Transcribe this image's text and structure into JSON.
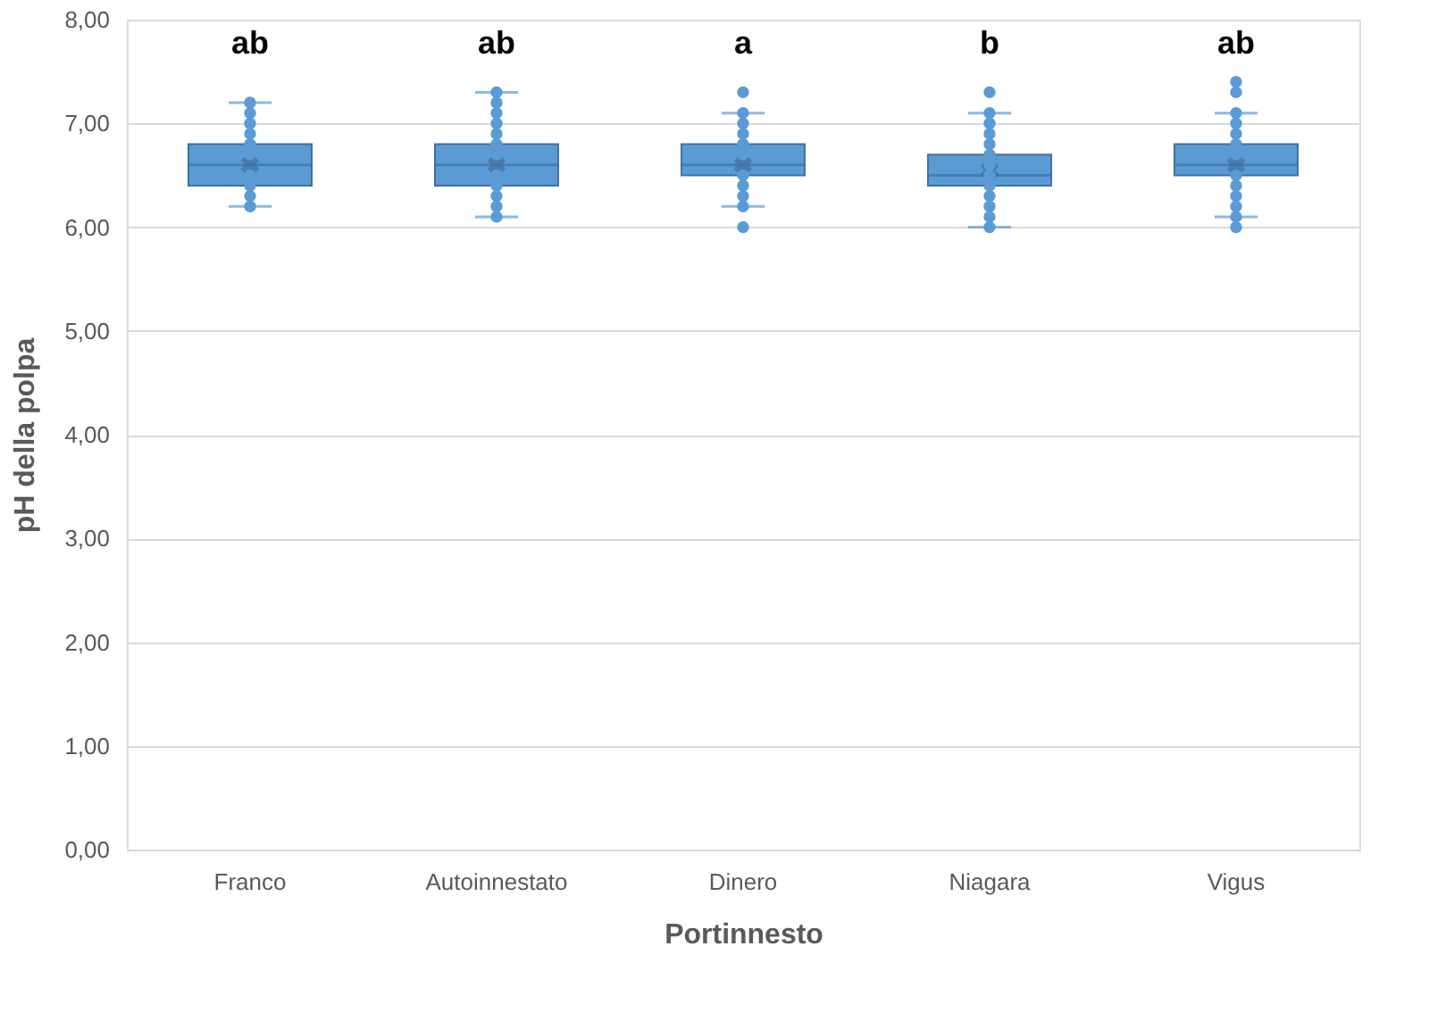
{
  "chart_data": {
    "type": "box",
    "xlabel": "Portinnesto",
    "ylabel": "pH della polpa",
    "categories": [
      "Franco",
      "Autoinnestato",
      "Dinero",
      "Niagara",
      "Vigus"
    ],
    "color": "#5b9bd5",
    "boxes": [
      {
        "low": 6.2,
        "q1": 6.4,
        "median": 6.6,
        "q3": 6.8,
        "high": 7.2,
        "mean": 6.6
      },
      {
        "low": 6.1,
        "q1": 6.4,
        "median": 6.6,
        "q3": 6.8,
        "high": 7.3,
        "mean": 6.6
      },
      {
        "low": 6.2,
        "q1": 6.5,
        "median": 6.6,
        "q3": 6.8,
        "high": 7.1,
        "mean": 6.6,
        "outliers": [
          7.3,
          6.0
        ]
      },
      {
        "low": 6.0,
        "q1": 6.4,
        "median": 6.5,
        "q3": 6.7,
        "high": 7.1,
        "mean": 6.55,
        "outliers": [
          7.3
        ]
      },
      {
        "low": 6.1,
        "q1": 6.5,
        "median": 6.6,
        "q3": 6.8,
        "high": 7.1,
        "mean": 6.6,
        "outliers": [
          7.4,
          7.3,
          6.0
        ]
      }
    ],
    "series": [
      {
        "type": "scatter",
        "color": "#5b9bd5",
        "marker": "circle",
        "x": [
          "Franco",
          "Franco",
          "Franco",
          "Franco",
          "Franco",
          "Franco",
          "Franco",
          "Franco",
          "Franco",
          "Franco",
          "Autoinnestato",
          "Autoinnestato",
          "Autoinnestato",
          "Autoinnestato",
          "Autoinnestato",
          "Autoinnestato",
          "Autoinnestato",
          "Autoinnestato",
          "Autoinnestato",
          "Autoinnestato",
          "Autoinnestato",
          "Autoinnestato",
          "Dinero",
          "Dinero",
          "Dinero",
          "Dinero",
          "Dinero",
          "Dinero",
          "Dinero",
          "Dinero",
          "Dinero",
          "Niagara",
          "Niagara",
          "Niagara",
          "Niagara",
          "Niagara",
          "Niagara",
          "Niagara",
          "Niagara",
          "Niagara",
          "Niagara",
          "Niagara",
          "Niagara",
          "Vigus",
          "Vigus",
          "Vigus",
          "Vigus",
          "Vigus",
          "Vigus",
          "Vigus",
          "Vigus",
          "Vigus",
          "Vigus"
        ],
        "values": [
          6.2,
          6.3,
          6.4,
          6.5,
          6.7,
          6.8,
          6.9,
          7.0,
          7.1,
          7.2,
          6.1,
          6.2,
          6.3,
          6.4,
          6.5,
          6.7,
          6.8,
          6.9,
          7.0,
          7.1,
          7.2,
          7.3,
          6.2,
          6.3,
          6.4,
          6.5,
          6.7,
          6.8,
          6.9,
          7.0,
          7.1,
          6.0,
          6.1,
          6.2,
          6.3,
          6.4,
          6.5,
          6.6,
          6.7,
          6.8,
          6.9,
          7.0,
          7.1,
          6.1,
          6.2,
          6.3,
          6.4,
          6.5,
          6.7,
          6.8,
          6.9,
          7.0,
          7.1
        ]
      }
    ],
    "ylim": [
      0,
      8
    ],
    "yticks": [
      {
        "value": 0,
        "label": "0,00"
      },
      {
        "value": 1,
        "label": "1,00"
      },
      {
        "value": 2,
        "label": "2,00"
      },
      {
        "value": 3,
        "label": "3,00"
      },
      {
        "value": 4,
        "label": "4,00"
      },
      {
        "value": 5,
        "label": "5,00"
      },
      {
        "value": 6,
        "label": "6,00"
      },
      {
        "value": 7,
        "label": "7,00"
      },
      {
        "value": 8,
        "label": "8,00"
      }
    ],
    "grid": "y",
    "annotations": [
      "ab",
      "ab",
      "a",
      "b",
      "ab"
    ]
  }
}
